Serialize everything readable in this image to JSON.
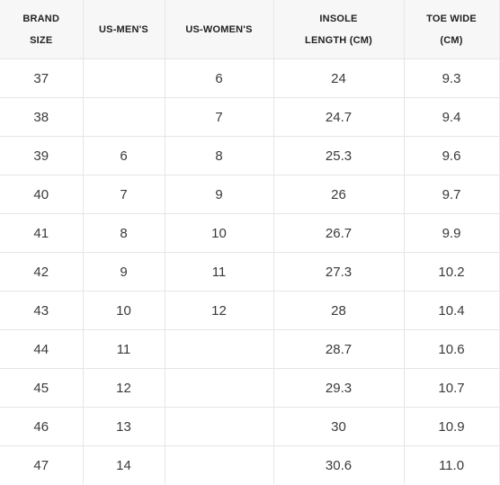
{
  "table": {
    "headers": [
      [
        "BRAND",
        "SIZE"
      ],
      [
        "US-MEN'S"
      ],
      [
        "US-WOMEN'S"
      ],
      [
        "INSOLE",
        "LENGTH (CM)"
      ],
      [
        "TOE WIDE",
        "(CM)"
      ]
    ],
    "rows": [
      [
        "37",
        "",
        "6",
        "24",
        "9.3"
      ],
      [
        "38",
        "",
        "7",
        "24.7",
        "9.4"
      ],
      [
        "39",
        "6",
        "8",
        "25.3",
        "9.6"
      ],
      [
        "40",
        "7",
        "9",
        "26",
        "9.7"
      ],
      [
        "41",
        "8",
        "10",
        "26.7",
        "9.9"
      ],
      [
        "42",
        "9",
        "11",
        "27.3",
        "10.2"
      ],
      [
        "43",
        "10",
        "12",
        "28",
        "10.4"
      ],
      [
        "44",
        "11",
        "",
        "28.7",
        "10.6"
      ],
      [
        "45",
        "12",
        "",
        "29.3",
        "10.7"
      ],
      [
        "46",
        "13",
        "",
        "30",
        "10.9"
      ],
      [
        "47",
        "14",
        "",
        "30.6",
        "11.0"
      ]
    ]
  }
}
